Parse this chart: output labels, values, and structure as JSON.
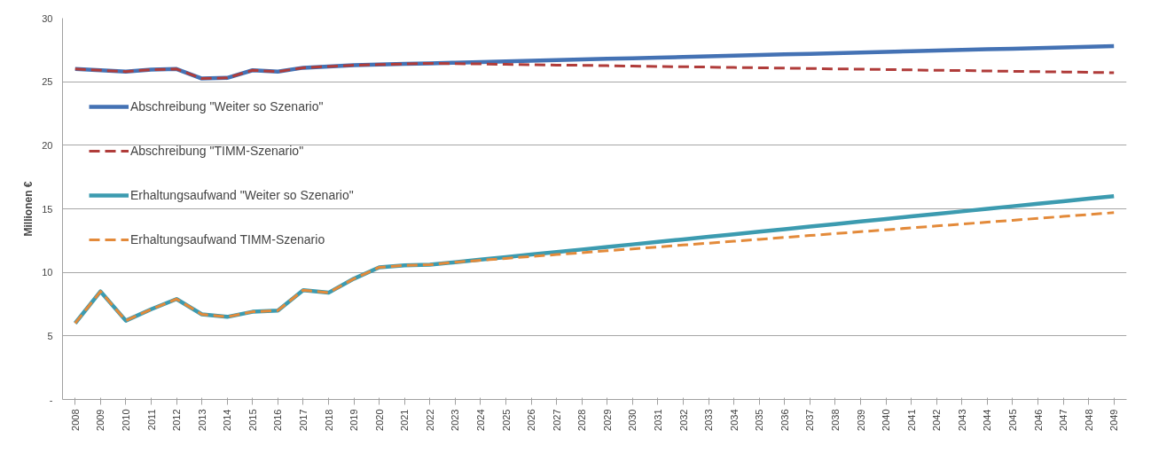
{
  "chart_data": {
    "type": "line",
    "ylabel": "Millionen €",
    "categories": [
      "2008",
      "2009",
      "2010",
      "2011",
      "2012",
      "2013",
      "2014",
      "2015",
      "2016",
      "2017",
      "2018",
      "2019",
      "2020",
      "2021",
      "2022",
      "2023",
      "2024",
      "2025",
      "2026",
      "2027",
      "2028",
      "2029",
      "2030",
      "2031",
      "2032",
      "2033",
      "2034",
      "2035",
      "2036",
      "2037",
      "2038",
      "2039",
      "2040",
      "2041",
      "2042",
      "2043",
      "2044",
      "2045",
      "2046",
      "2047",
      "2048",
      "2049"
    ],
    "ylim": [
      0,
      30
    ],
    "yticks": [
      {
        "value": 0,
        "label": "-"
      },
      5,
      10,
      15,
      20,
      25,
      30
    ],
    "grid": "y",
    "legend": "left",
    "marker": "none",
    "series": [
      {
        "name": "Abschreibung \"Weiter so Szenario\"",
        "color": "#4472b4",
        "line_style": "solid",
        "values": [
          26.0,
          25.9,
          25.8,
          25.95,
          26.0,
          25.25,
          25.3,
          25.9,
          25.8,
          26.1,
          26.2,
          26.3,
          26.35,
          26.4,
          26.45,
          26.5,
          26.55,
          26.6,
          26.65,
          26.7,
          26.75,
          26.8,
          26.85,
          26.9,
          26.95,
          27.0,
          27.05,
          27.1,
          27.15,
          27.2,
          27.25,
          27.3,
          27.35,
          27.4,
          27.45,
          27.5,
          27.55,
          27.6,
          27.65,
          27.7,
          27.75,
          27.8
        ]
      },
      {
        "name": "Abschreibung \"TIMM-Szenario\"",
        "color": "#b03c3a",
        "line_style": "dashed",
        "values": [
          26.0,
          25.9,
          25.8,
          25.95,
          26.0,
          25.25,
          25.3,
          25.9,
          25.8,
          26.1,
          26.2,
          26.3,
          26.35,
          26.4,
          26.45,
          26.42,
          26.4,
          26.37,
          26.34,
          26.31,
          26.29,
          26.26,
          26.23,
          26.2,
          26.18,
          26.15,
          26.12,
          26.1,
          26.07,
          26.04,
          26.01,
          25.99,
          25.96,
          25.93,
          25.9,
          25.88,
          25.85,
          25.82,
          25.79,
          25.77,
          25.74,
          25.71
        ]
      },
      {
        "name": "Erhaltungsaufwand \"Weiter so Szenario\"",
        "color": "#3c9bb0",
        "line_style": "solid",
        "values": [
          6.0,
          8.5,
          6.2,
          7.1,
          7.9,
          6.7,
          6.5,
          6.9,
          7.0,
          8.6,
          8.4,
          9.5,
          10.4,
          10.55,
          10.6,
          10.8,
          11.0,
          11.2,
          11.4,
          11.6,
          11.8,
          12.0,
          12.2,
          12.4,
          12.6,
          12.8,
          13.0,
          13.2,
          13.4,
          13.6,
          13.8,
          14.0,
          14.2,
          14.4,
          14.6,
          14.8,
          15.0,
          15.2,
          15.4,
          15.6,
          15.8,
          16.0
        ]
      },
      {
        "name": "Erhaltungsaufwand TIMM-Szenario",
        "color": "#e38a3a",
        "line_style": "dashed",
        "values": [
          6.0,
          8.5,
          6.2,
          7.1,
          7.9,
          6.7,
          6.5,
          6.9,
          7.0,
          8.6,
          8.4,
          9.5,
          10.4,
          10.55,
          10.6,
          10.8,
          10.95,
          11.1,
          11.25,
          11.4,
          11.55,
          11.7,
          11.85,
          12.0,
          12.15,
          12.3,
          12.45,
          12.6,
          12.75,
          12.9,
          13.05,
          13.2,
          13.35,
          13.5,
          13.65,
          13.8,
          13.95,
          14.1,
          14.25,
          14.4,
          14.55,
          14.7
        ]
      }
    ]
  }
}
